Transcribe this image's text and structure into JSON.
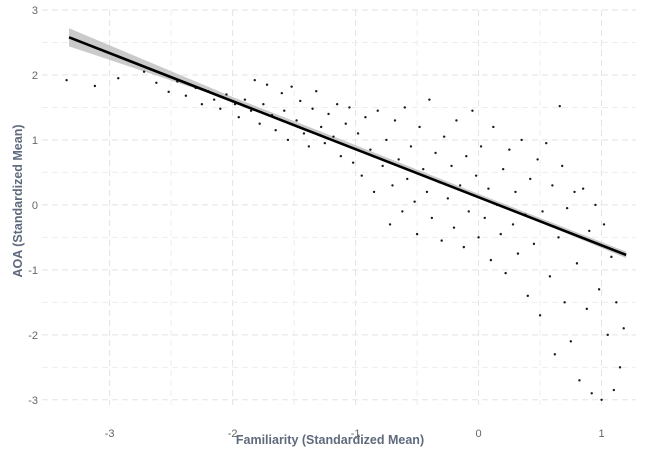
{
  "chart_data": {
    "type": "scatter",
    "title": "",
    "xlabel": "Familiarity (Standardized Mean)",
    "ylabel": "AOA (Standardized Mean)",
    "xlim": [
      -3.55,
      1.28
    ],
    "ylim": [
      -3.08,
      3.0
    ],
    "x_ticks": [
      -3,
      -2,
      -1,
      0,
      1
    ],
    "y_ticks": [
      -3,
      -2,
      -1,
      0,
      1,
      2,
      3
    ],
    "x_tick_labels": [
      "-3",
      "-2",
      "-1",
      "0",
      "1"
    ],
    "y_tick_labels": [
      "-3",
      "-2",
      "-1",
      "0",
      "1",
      "2",
      "3"
    ],
    "grid": "dashed",
    "legend": "none",
    "point_color": "#1a1a1a",
    "fit_color": "#000000",
    "ci_color": "#bdbdbd",
    "fit_line": {
      "x": [
        -3.33,
        1.2
      ],
      "y": [
        2.58,
        -0.77
      ]
    },
    "confidence_band": {
      "x": [
        -3.33,
        -2.0,
        -1.0,
        0.0,
        1.2
      ],
      "lower": [
        2.44,
        1.6,
        0.86,
        0.12,
        -0.82
      ],
      "upper": [
        2.72,
        1.66,
        0.92,
        0.17,
        -0.72
      ]
    },
    "series": [
      {
        "points": [
          [
            -3.35,
            1.92
          ],
          [
            -3.12,
            1.83
          ],
          [
            -2.93,
            1.95
          ],
          [
            -2.72,
            2.05
          ],
          [
            -2.62,
            1.88
          ],
          [
            -2.52,
            1.74
          ],
          [
            -2.45,
            1.9
          ],
          [
            -2.38,
            1.68
          ],
          [
            -2.3,
            1.8
          ],
          [
            -2.25,
            1.55
          ],
          [
            -2.2,
            1.75
          ],
          [
            -2.15,
            1.62
          ],
          [
            -2.1,
            1.48
          ],
          [
            -2.05,
            1.7
          ],
          [
            -1.98,
            1.55
          ],
          [
            -1.95,
            1.35
          ],
          [
            -1.9,
            1.62
          ],
          [
            -1.85,
            1.45
          ],
          [
            -1.82,
            1.92
          ],
          [
            -1.78,
            1.25
          ],
          [
            -1.75,
            1.55
          ],
          [
            -1.72,
            1.85
          ],
          [
            -1.68,
            1.38
          ],
          [
            -1.65,
            1.15
          ],
          [
            -1.6,
            1.72
          ],
          [
            -1.58,
            1.45
          ],
          [
            -1.55,
            1.0
          ],
          [
            -1.52,
            1.82
          ],
          [
            -1.48,
            1.3
          ],
          [
            -1.45,
            1.6
          ],
          [
            -1.42,
            1.1
          ],
          [
            -1.38,
            0.9
          ],
          [
            -1.35,
            1.48
          ],
          [
            -1.32,
            1.75
          ],
          [
            -1.28,
            1.2
          ],
          [
            -1.25,
            0.95
          ],
          [
            -1.22,
            1.4
          ],
          [
            -1.18,
            1.05
          ],
          [
            -1.15,
            1.55
          ],
          [
            -1.12,
            0.75
          ],
          [
            -1.08,
            1.25
          ],
          [
            -1.05,
            1.5
          ],
          [
            -1.02,
            0.65
          ],
          [
            -0.98,
            1.1
          ],
          [
            -0.95,
            0.45
          ],
          [
            -0.92,
            1.35
          ],
          [
            -0.88,
            0.85
          ],
          [
            -0.85,
            0.2
          ],
          [
            -0.82,
            1.45
          ],
          [
            -0.78,
            0.6
          ],
          [
            -0.75,
            1.0
          ],
          [
            -0.72,
            -0.3
          ],
          [
            -0.7,
            0.3
          ],
          [
            -0.68,
            1.3
          ],
          [
            -0.65,
            0.7
          ],
          [
            -0.62,
            -0.1
          ],
          [
            -0.6,
            1.5
          ],
          [
            -0.58,
            0.4
          ],
          [
            -0.55,
            0.9
          ],
          [
            -0.52,
            0.05
          ],
          [
            -0.5,
            -0.45
          ],
          [
            -0.48,
            1.2
          ],
          [
            -0.45,
            0.55
          ],
          [
            -0.42,
            0.2
          ],
          [
            -0.4,
            1.62
          ],
          [
            -0.38,
            -0.2
          ],
          [
            -0.35,
            0.8
          ],
          [
            -0.32,
            0.35
          ],
          [
            -0.3,
            -0.55
          ],
          [
            -0.28,
            1.05
          ],
          [
            -0.25,
            0.1
          ],
          [
            -0.22,
            0.6
          ],
          [
            -0.2,
            -0.35
          ],
          [
            -0.18,
            1.3
          ],
          [
            -0.15,
            0.3
          ],
          [
            -0.12,
            -0.65
          ],
          [
            -0.1,
            0.75
          ],
          [
            -0.08,
            -0.1
          ],
          [
            -0.05,
            1.45
          ],
          [
            -0.02,
            0.45
          ],
          [
            0.0,
            -0.5
          ],
          [
            0.02,
            0.9
          ],
          [
            0.05,
            -0.2
          ],
          [
            0.08,
            0.25
          ],
          [
            0.1,
            -0.85
          ],
          [
            0.12,
            1.2
          ],
          [
            0.15,
            0.0
          ],
          [
            0.18,
            -0.45
          ],
          [
            0.2,
            0.55
          ],
          [
            0.22,
            -1.05
          ],
          [
            0.25,
            0.85
          ],
          [
            0.28,
            -0.3
          ],
          [
            0.3,
            0.2
          ],
          [
            0.32,
            -0.75
          ],
          [
            0.35,
            1.0
          ],
          [
            0.38,
            -0.15
          ],
          [
            0.4,
            -1.4
          ],
          [
            0.42,
            0.4
          ],
          [
            0.45,
            -0.6
          ],
          [
            0.48,
            0.7
          ],
          [
            0.5,
            -1.7
          ],
          [
            0.52,
            -0.1
          ],
          [
            0.55,
            0.95
          ],
          [
            0.58,
            -1.1
          ],
          [
            0.6,
            0.3
          ],
          [
            0.62,
            -2.3
          ],
          [
            0.65,
            -0.5
          ],
          [
            0.66,
            1.52
          ],
          [
            0.68,
            0.6
          ],
          [
            0.7,
            -1.5
          ],
          [
            0.72,
            -0.05
          ],
          [
            0.75,
            -2.1
          ],
          [
            0.78,
            0.2
          ],
          [
            0.8,
            -0.9
          ],
          [
            0.82,
            -2.7
          ],
          [
            0.85,
            0.25
          ],
          [
            0.88,
            -1.6
          ],
          [
            0.9,
            -0.4
          ],
          [
            0.92,
            -2.9
          ],
          [
            0.95,
            0.0
          ],
          [
            0.98,
            -1.3
          ],
          [
            1.0,
            -3.0
          ],
          [
            1.02,
            -0.3
          ],
          [
            1.05,
            -2.0
          ],
          [
            1.08,
            -0.8
          ],
          [
            1.1,
            -2.85
          ],
          [
            1.12,
            -1.5
          ],
          [
            1.15,
            -2.5
          ],
          [
            1.18,
            -1.9
          ]
        ]
      }
    ]
  }
}
